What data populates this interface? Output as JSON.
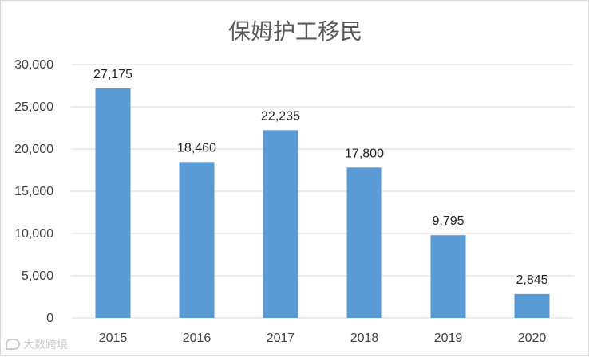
{
  "watermark": {
    "text": "大数跨境"
  },
  "chart_data": {
    "type": "bar",
    "title": "保姆护工移民",
    "xlabel": "",
    "ylabel": "",
    "categories": [
      "2015",
      "2016",
      "2017",
      "2018",
      "2019",
      "2020"
    ],
    "values": [
      27175,
      18460,
      22235,
      17800,
      9795,
      2845
    ],
    "value_labels": [
      "27,175",
      "18,460",
      "22,235",
      "17,800",
      "9,795",
      "2,845"
    ],
    "y_ticks": [
      0,
      5000,
      10000,
      15000,
      20000,
      25000,
      30000
    ],
    "y_tick_labels": [
      "0",
      "5,000",
      "10,000",
      "15,000",
      "20,000",
      "25,000",
      "30,000"
    ],
    "ylim": [
      0,
      30000
    ],
    "grid": true,
    "legend": "none",
    "bar_color": "#5B9BD5",
    "grid_color": "#d9d9d9"
  }
}
